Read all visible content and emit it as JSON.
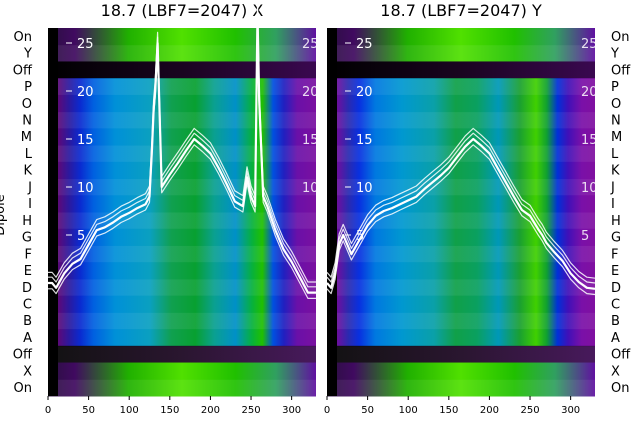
{
  "chart_data": [
    {
      "type": "heatmap",
      "title": "18.7 (LBF7=2047) X",
      "ylabel": "Dipole",
      "x_ticks": [
        0,
        50,
        100,
        150,
        200,
        250,
        300
      ],
      "xlim": [
        0,
        330
      ],
      "y_overlay_ticks": [
        10,
        15,
        20,
        25
      ],
      "y_overlay_ticks_hidden_label": "5",
      "row_labels": [
        "On",
        "Y",
        "Off",
        "P",
        "O",
        "N",
        "M",
        "L",
        "K",
        "J",
        "I",
        "H",
        "G",
        "F",
        "E",
        "D",
        "C",
        "B",
        "A",
        "Off",
        "X",
        "On"
      ],
      "series": [
        {
          "name": "",
          "x": [
            0,
            5,
            10,
            20,
            30,
            40,
            50,
            60,
            70,
            80,
            90,
            100,
            110,
            120,
            125,
            128,
            130,
            132,
            135,
            140,
            150,
            160,
            170,
            180,
            190,
            200,
            210,
            220,
            230,
            240,
            245,
            250,
            255,
            258,
            260,
            262,
            265,
            270,
            280,
            290,
            300,
            310,
            320,
            330
          ],
          "y": [
            0,
            0,
            -0.5,
            1,
            2,
            2.5,
            4,
            5.5,
            5.8,
            6.3,
            6.9,
            7.3,
            7.8,
            8.2,
            9,
            14,
            18,
            20,
            25,
            10,
            11.3,
            12.5,
            13.8,
            15,
            14.3,
            13.5,
            12,
            10.3,
            8.5,
            8,
            11,
            9,
            8,
            28,
            19,
            15,
            9,
            8,
            5.5,
            3.5,
            2.2,
            0.6,
            -1,
            -1
          ]
        }
      ]
    },
    {
      "type": "heatmap",
      "title": "18.7 (LBF7=2047) Y",
      "x_ticks": [
        0,
        50,
        100,
        150,
        200,
        250,
        300
      ],
      "xlim": [
        0,
        330
      ],
      "y_overlay_ticks": [
        5,
        10,
        15,
        20,
        25
      ],
      "row_labels": [
        "On",
        "Y",
        "Off",
        "P",
        "O",
        "N",
        "M",
        "L",
        "K",
        "J",
        "I",
        "H",
        "G",
        "F",
        "E",
        "D",
        "C",
        "B",
        "A",
        "Off",
        "X",
        "On"
      ],
      "series": [
        {
          "name": "",
          "x": [
            0,
            5,
            10,
            15,
            20,
            25,
            30,
            40,
            50,
            60,
            70,
            80,
            90,
            100,
            110,
            120,
            130,
            140,
            150,
            160,
            170,
            180,
            190,
            200,
            210,
            220,
            230,
            240,
            250,
            255,
            260,
            265,
            270,
            280,
            290,
            300,
            310,
            320,
            330
          ],
          "y": [
            0,
            -0.5,
            1,
            4,
            5,
            4,
            3,
            4.5,
            6,
            7,
            7.5,
            7.8,
            8.2,
            8.6,
            9,
            9.8,
            10.5,
            11.2,
            12,
            13.1,
            14.2,
            15,
            14.3,
            13.5,
            12,
            10.5,
            9,
            7.6,
            7,
            6.3,
            5.6,
            5,
            4.2,
            3.2,
            2.3,
            1,
            0.1,
            -0.5,
            -0.6
          ]
        }
      ]
    }
  ]
}
